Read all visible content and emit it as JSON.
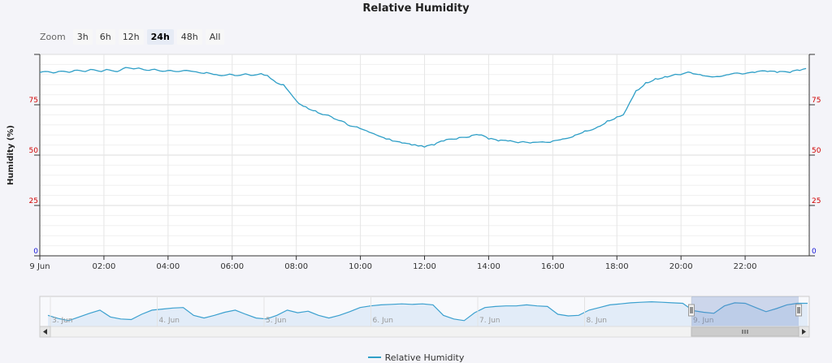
{
  "chart_data": {
    "type": "line",
    "title": "Relative Humidity",
    "ylabel": "Humidity (%)",
    "ylim": [
      0,
      100
    ],
    "y_ticks": [
      {
        "v": 0,
        "label": "0",
        "color": "#1414d8"
      },
      {
        "v": 25,
        "label": "25",
        "color": "#d00000"
      },
      {
        "v": 50,
        "label": "50",
        "color": "#d00000"
      },
      {
        "v": 75,
        "label": "75",
        "color": "#d00000"
      }
    ],
    "x_ticks": [
      "9 Jun",
      "02:00",
      "04:00",
      "06:00",
      "08:00",
      "10:00",
      "12:00",
      "14:00",
      "16:00",
      "18:00",
      "20:00",
      "22:00"
    ],
    "x_range_hours": [
      0,
      24.0
    ],
    "grid": true,
    "legend": "bottom",
    "series": [
      {
        "name": "Relative Humidity",
        "color": "#2f9fc7",
        "points": [
          [
            0.0,
            91
          ],
          [
            0.5,
            91
          ],
          [
            1.0,
            91.5
          ],
          [
            1.5,
            92
          ],
          [
            2.0,
            92
          ],
          [
            2.5,
            92
          ],
          [
            2.6,
            93
          ],
          [
            3.0,
            93
          ],
          [
            3.5,
            92.5
          ],
          [
            4.0,
            92
          ],
          [
            4.5,
            92
          ],
          [
            4.8,
            91.5
          ],
          [
            5.2,
            91
          ],
          [
            5.5,
            90
          ],
          [
            6.0,
            90
          ],
          [
            6.5,
            90
          ],
          [
            6.9,
            90.5
          ],
          [
            7.1,
            89.5
          ],
          [
            7.3,
            87
          ],
          [
            7.6,
            85
          ],
          [
            7.8,
            81
          ],
          [
            8.0,
            77
          ],
          [
            8.3,
            74
          ],
          [
            8.6,
            72
          ],
          [
            8.9,
            70
          ],
          [
            9.1,
            69
          ],
          [
            9.4,
            67
          ],
          [
            9.6,
            65
          ],
          [
            9.9,
            64
          ],
          [
            10.2,
            62
          ],
          [
            10.5,
            60
          ],
          [
            10.8,
            58
          ],
          [
            11.0,
            57
          ],
          [
            11.3,
            56
          ],
          [
            11.6,
            55
          ],
          [
            11.8,
            54.5
          ],
          [
            12.0,
            54
          ],
          [
            12.3,
            55
          ],
          [
            12.6,
            57
          ],
          [
            13.0,
            58
          ],
          [
            13.4,
            59
          ],
          [
            13.7,
            60
          ],
          [
            14.0,
            58
          ],
          [
            14.3,
            57
          ],
          [
            14.6,
            57
          ],
          [
            15.0,
            56.5
          ],
          [
            15.3,
            56
          ],
          [
            15.6,
            56.5
          ],
          [
            16.0,
            57
          ],
          [
            16.3,
            58
          ],
          [
            16.7,
            60
          ],
          [
            17.0,
            62
          ],
          [
            17.4,
            64
          ],
          [
            17.7,
            67
          ],
          [
            18.0,
            69
          ],
          [
            18.2,
            70
          ],
          [
            18.4,
            76
          ],
          [
            18.6,
            82
          ],
          [
            18.9,
            86
          ],
          [
            19.2,
            88
          ],
          [
            19.5,
            89
          ],
          [
            19.9,
            90
          ],
          [
            20.3,
            91
          ],
          [
            20.6,
            90
          ],
          [
            20.9,
            89
          ],
          [
            21.2,
            89
          ],
          [
            21.5,
            90
          ],
          [
            22.0,
            90.5
          ],
          [
            22.3,
            91
          ],
          [
            22.7,
            91.5
          ],
          [
            23.0,
            91
          ],
          [
            23.4,
            91
          ],
          [
            23.7,
            92
          ],
          [
            23.9,
            93
          ]
        ]
      }
    ]
  },
  "zoom": {
    "label": "Zoom",
    "buttons": [
      "3h",
      "6h",
      "12h",
      "24h",
      "48h",
      "All"
    ],
    "active": "24h"
  },
  "navigator": {
    "labels": [
      "3. Jun",
      "4. Jun",
      "5. Jun",
      "6. Jun",
      "7. Jun",
      "8. Jun",
      "9. Jun"
    ],
    "series": [
      40,
      34,
      30,
      37,
      44,
      50,
      37,
      33,
      32,
      42,
      50,
      52,
      54,
      55,
      40,
      35,
      40,
      46,
      50,
      42,
      35,
      33,
      40,
      50,
      45,
      48,
      40,
      35,
      40,
      47,
      55,
      58,
      60,
      61,
      62,
      61,
      62,
      60,
      40,
      33,
      30,
      45,
      55,
      57,
      58,
      58,
      60,
      58,
      57,
      42,
      39,
      40,
      50,
      55,
      60,
      62,
      64,
      65,
      66,
      65,
      64,
      63,
      49,
      46,
      44,
      58,
      64,
      63,
      55,
      47,
      53,
      60,
      63,
      63
    ]
  }
}
